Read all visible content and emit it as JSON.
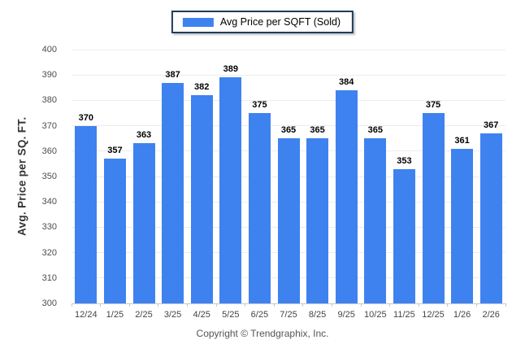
{
  "legend": {
    "label": "Avg Price per SQFT (Sold)"
  },
  "colors": {
    "bar": "#3e82f0",
    "legend_border": "#1f3b5c",
    "gridline": "#ececec",
    "axis_line": "#c9c9c9",
    "tick_text": "#4d4d4d",
    "value_label_text": "#000000",
    "footer_text": "#555555"
  },
  "chart_data": {
    "type": "bar",
    "title": "",
    "series_name": "Avg Price per SQFT (Sold)",
    "categories": [
      "12/24",
      "1/25",
      "2/25",
      "3/25",
      "4/25",
      "5/25",
      "6/25",
      "7/25",
      "8/25",
      "9/25",
      "10/25",
      "11/25",
      "12/25",
      "1/26",
      "2/26"
    ],
    "values": [
      370,
      357,
      363,
      387,
      382,
      389,
      375,
      365,
      365,
      384,
      365,
      353,
      375,
      361,
      367
    ],
    "xlabel": "",
    "ylabel": "Avg. Price per SQ. FT.",
    "ylim": [
      300,
      400
    ],
    "ytick_step": 10,
    "grid": true,
    "data_labels": true,
    "legend_position": "top-center"
  },
  "footer": {
    "copyright": "Copyright © Trendgraphix, Inc."
  }
}
